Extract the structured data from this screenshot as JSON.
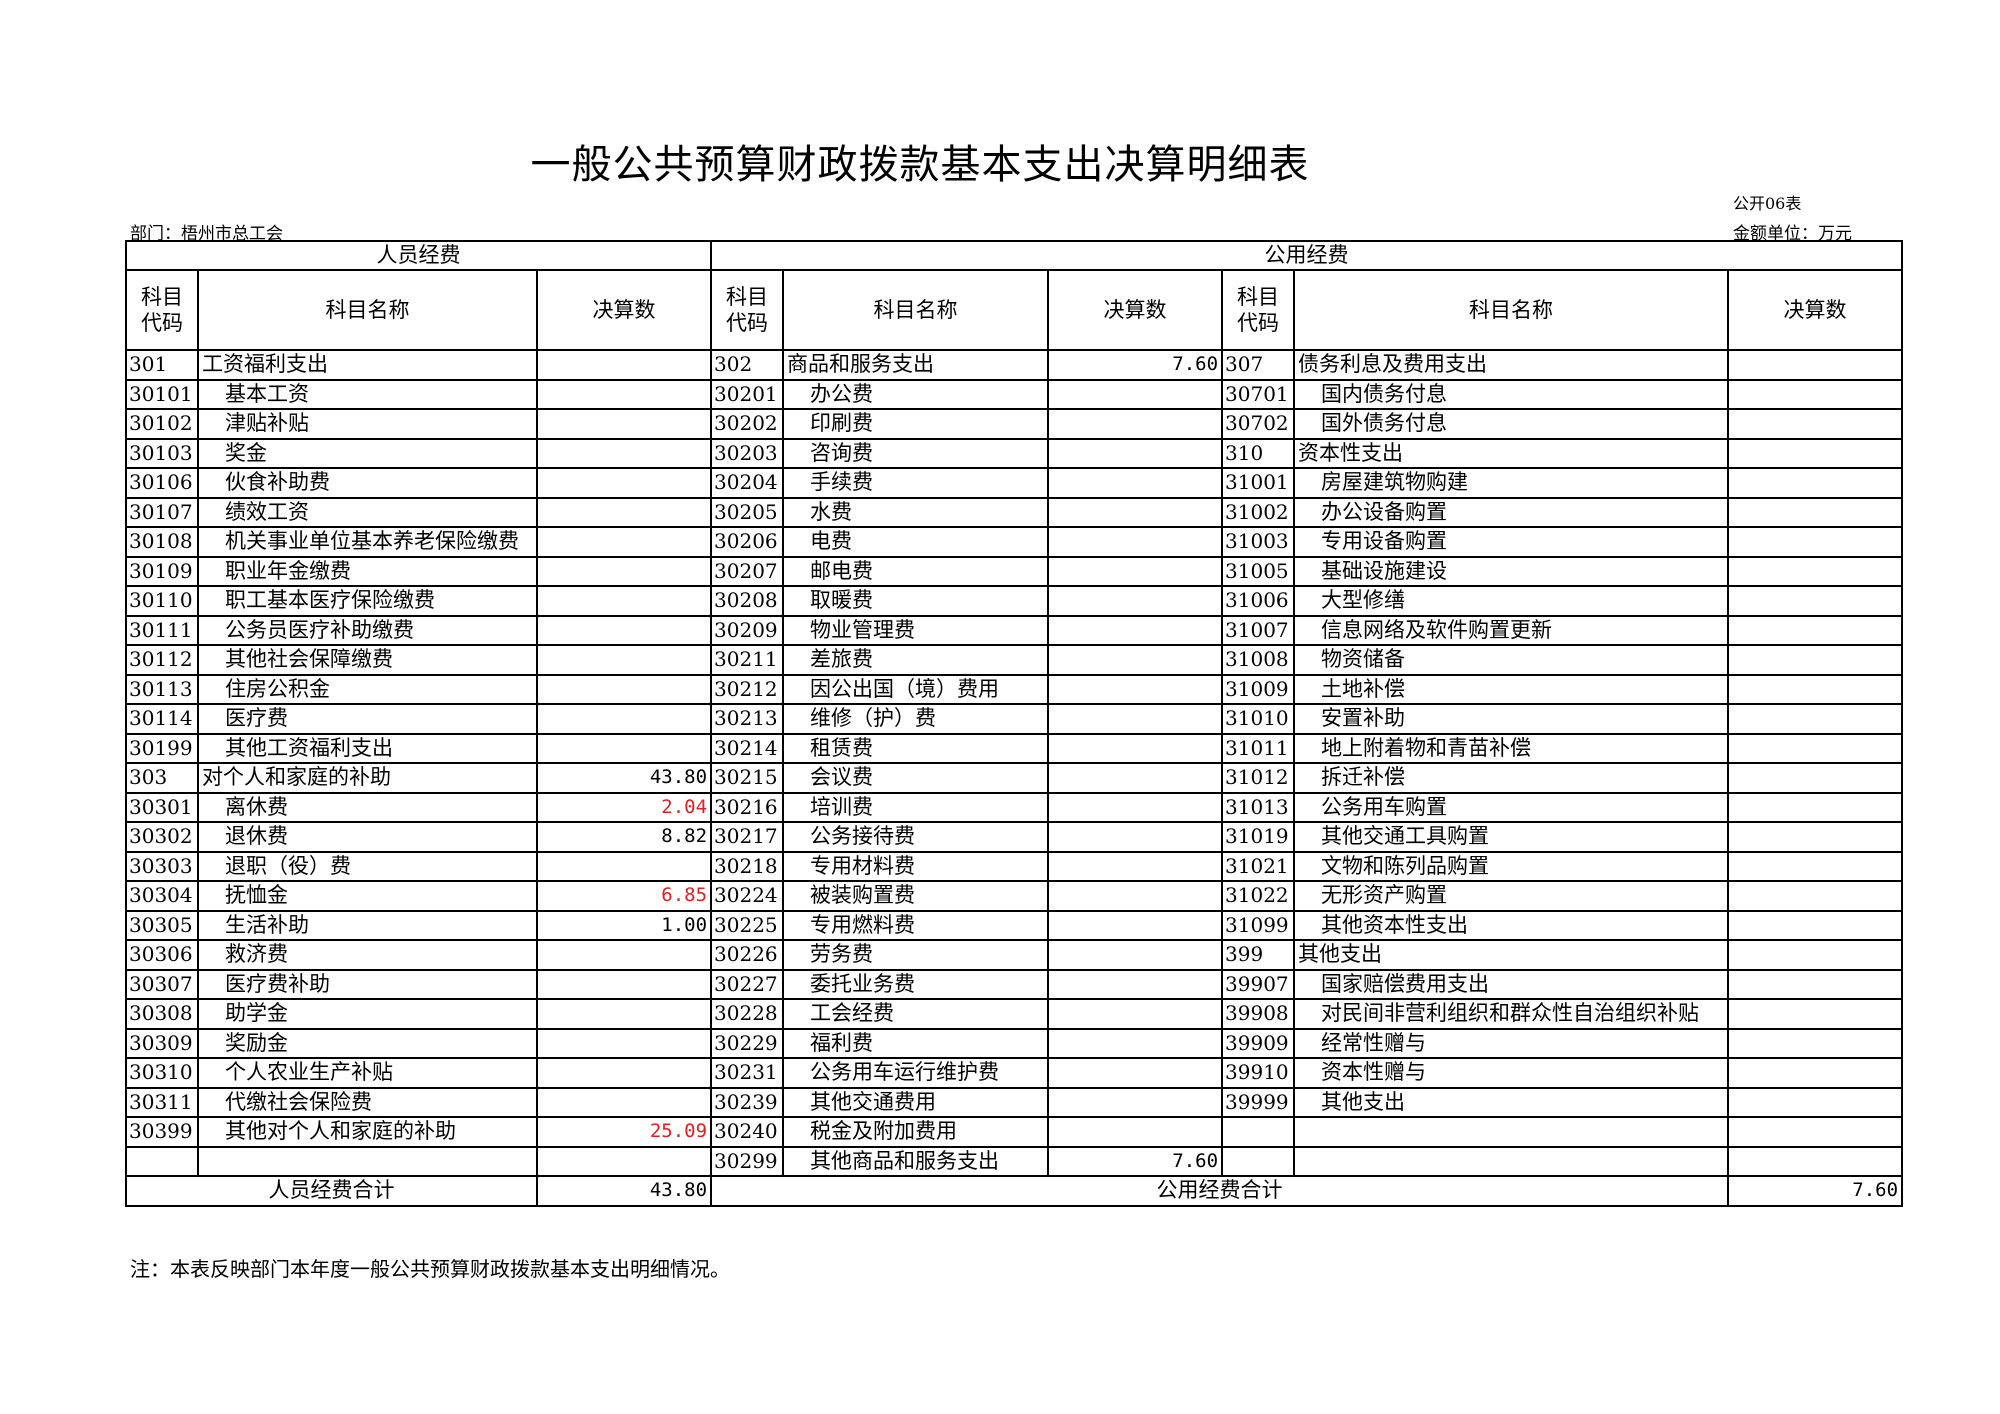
{
  "title": "一般公共预算财政拨款基本支出决算明细表",
  "form_no": "公开06表",
  "department": "部门：梧州市总工会",
  "unit": "金额单位：万元",
  "sections": {
    "personnel": "人员经费",
    "public": "公用经费"
  },
  "columns": {
    "code": "科目\n代码",
    "code_line1": "科目",
    "code_line2": "代码",
    "name": "科目名称",
    "amount": "决算数"
  },
  "highlight_color": "#e02020",
  "rows": [
    [
      {
        "code": "301",
        "name": "工资福利支出",
        "value": ""
      },
      {
        "code": "302",
        "name": "商品和服务支出",
        "value": "7.60"
      },
      {
        "code": "307",
        "name": "债务利息及费用支出",
        "value": ""
      }
    ],
    [
      {
        "code": "30101",
        "name": "基本工资",
        "value": ""
      },
      {
        "code": "30201",
        "name": "办公费",
        "value": ""
      },
      {
        "code": "30701",
        "name": "国内债务付息",
        "value": ""
      }
    ],
    [
      {
        "code": "30102",
        "name": "津贴补贴",
        "value": ""
      },
      {
        "code": "30202",
        "name": "印刷费",
        "value": ""
      },
      {
        "code": "30702",
        "name": "国外债务付息",
        "value": ""
      }
    ],
    [
      {
        "code": "30103",
        "name": "奖金",
        "value": ""
      },
      {
        "code": "30203",
        "name": "咨询费",
        "value": ""
      },
      {
        "code": "310",
        "name": "资本性支出",
        "value": ""
      }
    ],
    [
      {
        "code": "30106",
        "name": "伙食补助费",
        "value": ""
      },
      {
        "code": "30204",
        "name": "手续费",
        "value": ""
      },
      {
        "code": "31001",
        "name": "房屋建筑物购建",
        "value": ""
      }
    ],
    [
      {
        "code": "30107",
        "name": "绩效工资",
        "value": ""
      },
      {
        "code": "30205",
        "name": "水费",
        "value": ""
      },
      {
        "code": "31002",
        "name": "办公设备购置",
        "value": ""
      }
    ],
    [
      {
        "code": "30108",
        "name": "机关事业单位基本养老保险缴费",
        "value": ""
      },
      {
        "code": "30206",
        "name": "电费",
        "value": ""
      },
      {
        "code": "31003",
        "name": "专用设备购置",
        "value": ""
      }
    ],
    [
      {
        "code": "30109",
        "name": "职业年金缴费",
        "value": ""
      },
      {
        "code": "30207",
        "name": "邮电费",
        "value": ""
      },
      {
        "code": "31005",
        "name": "基础设施建设",
        "value": ""
      }
    ],
    [
      {
        "code": "30110",
        "name": "职工基本医疗保险缴费",
        "value": ""
      },
      {
        "code": "30208",
        "name": "取暖费",
        "value": ""
      },
      {
        "code": "31006",
        "name": "大型修缮",
        "value": ""
      }
    ],
    [
      {
        "code": "30111",
        "name": "公务员医疗补助缴费",
        "value": ""
      },
      {
        "code": "30209",
        "name": "物业管理费",
        "value": ""
      },
      {
        "code": "31007",
        "name": "信息网络及软件购置更新",
        "value": ""
      }
    ],
    [
      {
        "code": "30112",
        "name": "其他社会保障缴费",
        "value": ""
      },
      {
        "code": "30211",
        "name": "差旅费",
        "value": ""
      },
      {
        "code": "31008",
        "name": "物资储备",
        "value": ""
      }
    ],
    [
      {
        "code": "30113",
        "name": "住房公积金",
        "value": ""
      },
      {
        "code": "30212",
        "name": "因公出国（境）费用",
        "value": ""
      },
      {
        "code": "31009",
        "name": "土地补偿",
        "value": ""
      }
    ],
    [
      {
        "code": "30114",
        "name": "医疗费",
        "value": ""
      },
      {
        "code": "30213",
        "name": "维修（护）费",
        "value": ""
      },
      {
        "code": "31010",
        "name": "安置补助",
        "value": ""
      }
    ],
    [
      {
        "code": "30199",
        "name": "其他工资福利支出",
        "value": ""
      },
      {
        "code": "30214",
        "name": "租赁费",
        "value": ""
      },
      {
        "code": "31011",
        "name": "地上附着物和青苗补偿",
        "value": ""
      }
    ],
    [
      {
        "code": "303",
        "name": "对个人和家庭的补助",
        "value": "43.80"
      },
      {
        "code": "30215",
        "name": "会议费",
        "value": ""
      },
      {
        "code": "31012",
        "name": "拆迁补偿",
        "value": ""
      }
    ],
    [
      {
        "code": "30301",
        "name": "离休费",
        "value": "2.04",
        "red": true
      },
      {
        "code": "30216",
        "name": "培训费",
        "value": ""
      },
      {
        "code": "31013",
        "name": "公务用车购置",
        "value": ""
      }
    ],
    [
      {
        "code": "30302",
        "name": "退休费",
        "value": "8.82"
      },
      {
        "code": "30217",
        "name": "公务接待费",
        "value": ""
      },
      {
        "code": "31019",
        "name": "其他交通工具购置",
        "value": ""
      }
    ],
    [
      {
        "code": "30303",
        "name": "退职（役）费",
        "value": ""
      },
      {
        "code": "30218",
        "name": "专用材料费",
        "value": ""
      },
      {
        "code": "31021",
        "name": "文物和陈列品购置",
        "value": ""
      }
    ],
    [
      {
        "code": "30304",
        "name": "抚恤金",
        "value": "6.85",
        "red": true
      },
      {
        "code": "30224",
        "name": "被装购置费",
        "value": ""
      },
      {
        "code": "31022",
        "name": "无形资产购置",
        "value": ""
      }
    ],
    [
      {
        "code": "30305",
        "name": "生活补助",
        "value": "1.00"
      },
      {
        "code": "30225",
        "name": "专用燃料费",
        "value": ""
      },
      {
        "code": "31099",
        "name": "其他资本性支出",
        "value": ""
      }
    ],
    [
      {
        "code": "30306",
        "name": "救济费",
        "value": ""
      },
      {
        "code": "30226",
        "name": "劳务费",
        "value": ""
      },
      {
        "code": "399",
        "name": "其他支出",
        "value": ""
      }
    ],
    [
      {
        "code": "30307",
        "name": "医疗费补助",
        "value": ""
      },
      {
        "code": "30227",
        "name": "委托业务费",
        "value": ""
      },
      {
        "code": "39907",
        "name": "国家赔偿费用支出",
        "value": ""
      }
    ],
    [
      {
        "code": "30308",
        "name": "助学金",
        "value": ""
      },
      {
        "code": "30228",
        "name": "工会经费",
        "value": ""
      },
      {
        "code": "39908",
        "name": "对民间非营利组织和群众性自治组织补贴",
        "value": ""
      }
    ],
    [
      {
        "code": "30309",
        "name": "奖励金",
        "value": ""
      },
      {
        "code": "30229",
        "name": "福利费",
        "value": ""
      },
      {
        "code": "39909",
        "name": "经常性赠与",
        "value": ""
      }
    ],
    [
      {
        "code": "30310",
        "name": "个人农业生产补贴",
        "value": ""
      },
      {
        "code": "30231",
        "name": "公务用车运行维护费",
        "value": ""
      },
      {
        "code": "39910",
        "name": "资本性赠与",
        "value": ""
      }
    ],
    [
      {
        "code": "30311",
        "name": "代缴社会保险费",
        "value": ""
      },
      {
        "code": "30239",
        "name": "其他交通费用",
        "value": ""
      },
      {
        "code": "39999",
        "name": "其他支出",
        "value": ""
      }
    ],
    [
      {
        "code": "30399",
        "name": "其他对个人和家庭的补助",
        "value": "25.09",
        "red": true
      },
      {
        "code": "30240",
        "name": "税金及附加费用",
        "value": ""
      },
      {
        "code": "",
        "name": "",
        "value": ""
      }
    ],
    [
      {
        "code": "",
        "name": "",
        "value": ""
      },
      {
        "code": "30299",
        "name": "其他商品和服务支出",
        "value": "7.60"
      },
      {
        "code": "",
        "name": "",
        "value": ""
      }
    ]
  ],
  "totals": {
    "personnel_label": "人员经费合计",
    "personnel_value": "43.80",
    "public_label": "公用经费合计",
    "public_value": "7.60"
  },
  "note": "注：本表反映部门本年度一般公共预算财政拨款基本支出明细情况。"
}
